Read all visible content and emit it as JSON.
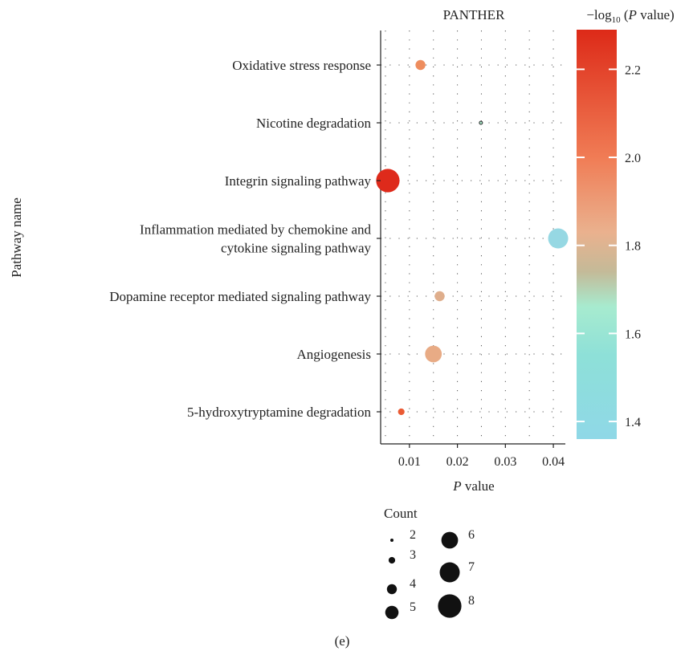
{
  "chart_data": {
    "type": "scatter",
    "title": "PANTHER",
    "xlabel": "P value",
    "ylabel": "Pathway name",
    "xlim": [
      0.004,
      0.0425
    ],
    "x_ticks": [
      "0.01",
      "0.02",
      "0.03",
      "0.04"
    ],
    "grid": true,
    "categories": [
      "5-hydroxytryptamine degradation",
      "Angiogenesis",
      "Dopamine receptor mediated signaling pathway",
      [
        "Inflammation mediated by chemokine and",
        "cytokine signaling pathway"
      ],
      "Integrin signaling pathway",
      "Nicotine degradation",
      "Oxidative stress response"
    ],
    "points": [
      {
        "pathway": 0,
        "p_value": 0.0083,
        "count": 3,
        "color": "#ea5b34"
      },
      {
        "pathway": 1,
        "p_value": 0.015,
        "count": 6,
        "color": "#e8ab85"
      },
      {
        "pathway": 2,
        "p_value": 0.0163,
        "count": 4,
        "color": "#dfae8c"
      },
      {
        "pathway": 3,
        "p_value": 0.041,
        "count": 7,
        "color": "#96d8e3"
      },
      {
        "pathway": 4,
        "p_value": 0.0055,
        "count": 8,
        "color": "#de2a1b"
      },
      {
        "pathway": 5,
        "p_value": 0.0249,
        "count": 2,
        "color": "#a8e6c8"
      },
      {
        "pathway": 6,
        "p_value": 0.0123,
        "count": 4,
        "color": "#ee8d5e"
      }
    ],
    "color_legend": {
      "title_prefix": "−log",
      "title_sub": "10",
      "title_open": " (",
      "title_var": "P",
      "title_rest": " value)",
      "range": [
        1.36,
        2.29
      ],
      "ticks": [
        "1.4",
        "1.6",
        "1.8",
        "2.0",
        "2.2"
      ],
      "stops": [
        {
          "v": 1.36,
          "color": "#8fd8e7"
        },
        {
          "v": 1.55,
          "color": "#8ee0d8"
        },
        {
          "v": 1.66,
          "color": "#a7ebcf"
        },
        {
          "v": 1.74,
          "color": "#c4ba98"
        },
        {
          "v": 1.83,
          "color": "#eab18e"
        },
        {
          "v": 2.0,
          "color": "#f07c55"
        },
        {
          "v": 2.29,
          "color": "#dd2a18"
        }
      ]
    },
    "size_legend": {
      "title": "Count",
      "items": [
        {
          "count": 2,
          "label": "2"
        },
        {
          "count": 3,
          "label": "3"
        },
        {
          "count": 4,
          "label": "4"
        },
        {
          "count": 5,
          "label": "5"
        },
        {
          "count": 6,
          "label": "6"
        },
        {
          "count": 7,
          "label": "7"
        },
        {
          "count": 8,
          "label": "8"
        }
      ]
    },
    "caption": "(e)"
  }
}
